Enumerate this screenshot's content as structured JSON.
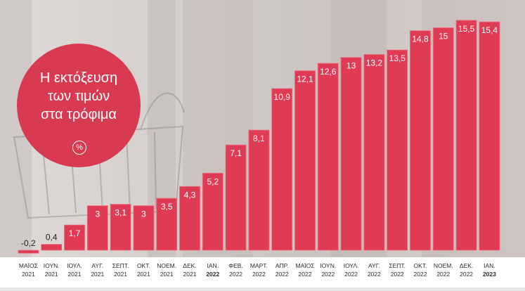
{
  "chart_data": {
    "type": "bar",
    "title": "Η εκτόξευση\nτων τιμών\nστα τρόφιμα",
    "unit_label": "%",
    "categories": [
      {
        "month": "ΜΑΪΟΣ",
        "year": "2021",
        "year_bold": false
      },
      {
        "month": "ΙΟΥΝ.",
        "year": "2021",
        "year_bold": false
      },
      {
        "month": "ΙΟΥΛ.",
        "year": "2021",
        "year_bold": false
      },
      {
        "month": "ΑΥΓ.",
        "year": "2021",
        "year_bold": false
      },
      {
        "month": "ΣΕΠΤ.",
        "year": "2021",
        "year_bold": false
      },
      {
        "month": "ΟΚΤ.",
        "year": "2021",
        "year_bold": false
      },
      {
        "month": "ΝΟΕΜ.",
        "year": "2021",
        "year_bold": false
      },
      {
        "month": "ΔΕΚ.",
        "year": "2021",
        "year_bold": false
      },
      {
        "month": "ΙΑΝ.",
        "year": "2022",
        "year_bold": true
      },
      {
        "month": "ΦΕΒ.",
        "year": "2022",
        "year_bold": false
      },
      {
        "month": "ΜΑΡΤ.",
        "year": "2022",
        "year_bold": false
      },
      {
        "month": "ΑΠΡ.",
        "year": "2022",
        "year_bold": false
      },
      {
        "month": "ΜΑΪΟΣ",
        "year": "2022",
        "year_bold": false
      },
      {
        "month": "ΙΟΥΝ.",
        "year": "2022",
        "year_bold": false
      },
      {
        "month": "ΙΟΥΛ.",
        "year": "2022",
        "year_bold": false
      },
      {
        "month": "ΑΥΓ.",
        "year": "2022",
        "year_bold": false
      },
      {
        "month": "ΣΕΠΤ.",
        "year": "2022",
        "year_bold": false
      },
      {
        "month": "ΟΚΤ.",
        "year": "2022",
        "year_bold": false
      },
      {
        "month": "ΝΟΕΜ.",
        "year": "2022",
        "year_bold": false
      },
      {
        "month": "ΔΕΚ.",
        "year": "2022",
        "year_bold": false
      },
      {
        "month": "ΙΑΝ.",
        "year": "2023",
        "year_bold": true
      }
    ],
    "values": [
      -0.2,
      0.4,
      1.7,
      3,
      3.1,
      3,
      3.5,
      4.3,
      5.2,
      7.1,
      8.1,
      10.9,
      12.1,
      12.6,
      13,
      13.2,
      13.5,
      14.8,
      15,
      15.5,
      15.4
    ],
    "value_labels": [
      "-0,2",
      "0,4",
      "1,7",
      "3",
      "3,1",
      "3",
      "3,5",
      "4,3",
      "5,2",
      "7,1",
      "8,1",
      "10,9",
      "12,1",
      "12,6",
      "13",
      "13,2",
      "13,5",
      "14,8",
      "15",
      "15,5",
      "15,4"
    ],
    "xlabel": "",
    "ylabel": "",
    "ylim": [
      -0.5,
      15.5
    ],
    "grid": false,
    "legend": "none",
    "colors": {
      "bar": "#e03b55",
      "bar_edge": "#f06b80",
      "circle": "#d83a52",
      "background": "#e9e7e6",
      "footer": "#ffffff"
    }
  }
}
